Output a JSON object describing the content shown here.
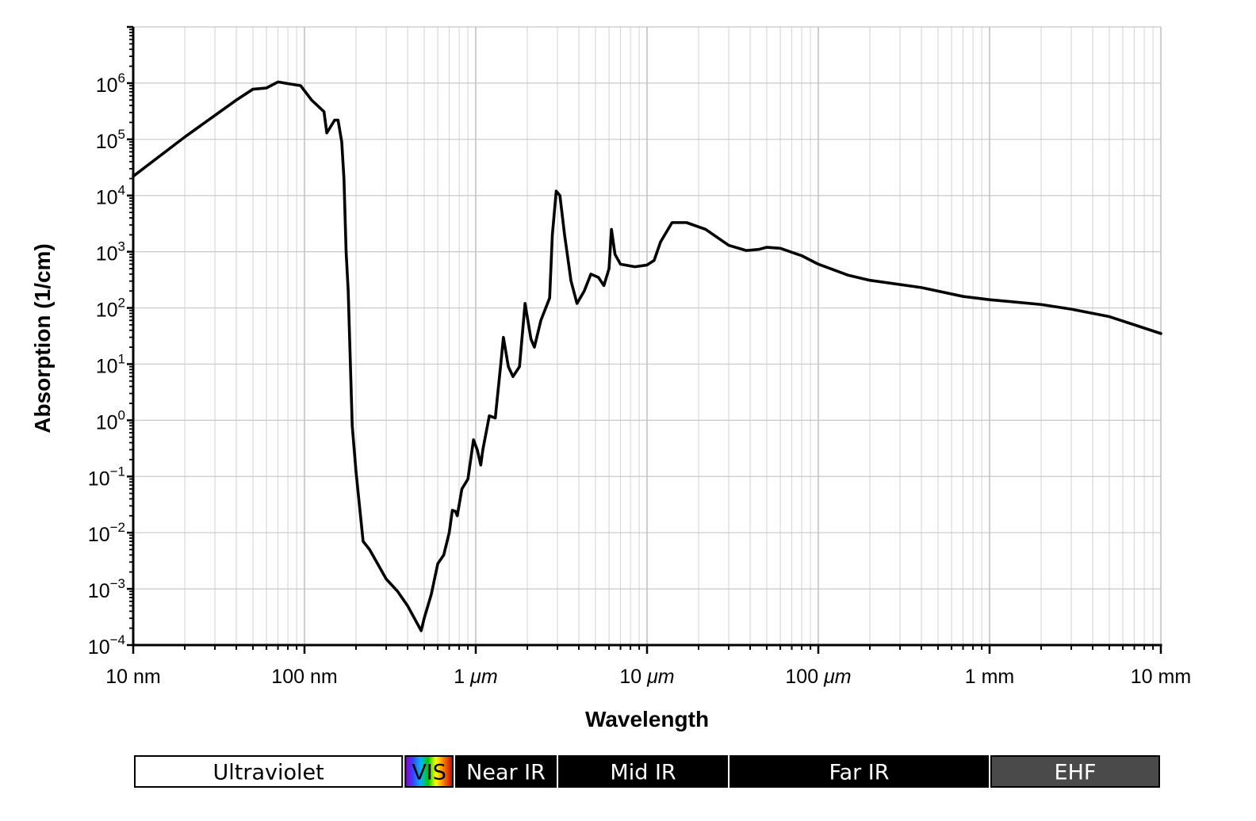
{
  "chart_data": {
    "type": "line",
    "title": "",
    "xlabel": "Wavelength",
    "ylabel": "Absorption (1/cm)",
    "x_scale": "log",
    "y_scale": "log",
    "xlim": [
      "10 nm",
      "10 mm"
    ],
    "ylim": [
      0.0001,
      10000000
    ],
    "grid": true,
    "x_tick_labels": [
      {
        "v": "10 nm",
        "text": "10 nm"
      },
      {
        "v": "100 nm",
        "text": "100 nm"
      },
      {
        "v": "1 µm",
        "text": "1 μm"
      },
      {
        "v": "10 µm",
        "text": "10 μm"
      },
      {
        "v": "100 µm",
        "text": "100 μm"
      },
      {
        "v": "1 mm",
        "text": "1 mm"
      },
      {
        "v": "10 mm",
        "text": "10 mm"
      }
    ],
    "y_tick_labels": [
      {
        "base": "10",
        "exp": "6"
      },
      {
        "base": "10",
        "exp": "5"
      },
      {
        "base": "10",
        "exp": "4"
      },
      {
        "base": "10",
        "exp": "3"
      },
      {
        "base": "10",
        "exp": "2"
      },
      {
        "base": "10",
        "exp": "1"
      },
      {
        "base": "10",
        "exp": "0"
      },
      {
        "base": "10",
        "exp": "−1"
      },
      {
        "base": "10",
        "exp": "−2"
      },
      {
        "base": "10",
        "exp": "−3"
      },
      {
        "base": "10",
        "exp": "−4"
      }
    ],
    "series": [
      {
        "color": "#000000",
        "points": [
          [
            "10 nm",
            22000
          ],
          [
            "20 nm",
            110000
          ],
          [
            "40 nm",
            500000
          ],
          [
            "50 nm",
            780000
          ],
          [
            "60 nm",
            820000
          ],
          [
            "70 nm",
            1050000
          ],
          [
            "80 nm",
            980000
          ],
          [
            "95 nm",
            900000
          ],
          [
            "110 nm",
            500000
          ],
          [
            "130 nm",
            310000
          ],
          [
            "135 nm",
            130000
          ],
          [
            "150 nm",
            220000
          ],
          [
            "157 nm",
            220000
          ],
          [
            "165 nm",
            90000
          ],
          [
            "170 nm",
            20000
          ],
          [
            "175 nm",
            1000
          ],
          [
            "180 nm",
            200
          ],
          [
            "190 nm",
            0.8
          ],
          [
            "200 nm",
            0.12
          ],
          [
            "220 nm",
            0.007
          ],
          [
            "240 nm",
            0.005
          ],
          [
            "300 nm",
            0.0015
          ],
          [
            "350 nm",
            0.0009
          ],
          [
            "400 nm",
            0.0005
          ],
          [
            "480 nm",
            0.00018
          ],
          [
            "500 nm",
            0.0003
          ],
          [
            "550 nm",
            0.0008
          ],
          [
            "600 nm",
            0.0028
          ],
          [
            "650 nm",
            0.004
          ],
          [
            "700 nm",
            0.01
          ],
          [
            "730 nm",
            0.025
          ],
          [
            "760 nm",
            0.024
          ],
          [
            "780 nm",
            0.02
          ],
          [
            "830 nm",
            0.06
          ],
          [
            "900 nm",
            0.09
          ],
          [
            "970 nm",
            0.45
          ],
          [
            "1020 nm",
            0.3
          ],
          [
            "1070 nm",
            0.16
          ],
          [
            "1100 nm",
            0.3
          ],
          [
            "1200 nm",
            1.2
          ],
          [
            "1300 nm",
            1.1
          ],
          [
            "1400 nm",
            10
          ],
          [
            "1450 nm",
            30
          ],
          [
            "1550 nm",
            9
          ],
          [
            "1650 nm",
            6
          ],
          [
            "1800 nm",
            9
          ],
          [
            "1940 nm",
            120
          ],
          [
            "2100 nm",
            28
          ],
          [
            "2200 nm",
            20
          ],
          [
            "2400 nm",
            60
          ],
          [
            "2700 nm",
            150
          ],
          [
            "2800 nm",
            2000
          ],
          [
            "2950 nm",
            12000
          ],
          [
            "3100 nm",
            10000
          ],
          [
            "3300 nm",
            2000
          ],
          [
            "3600 nm",
            300
          ],
          [
            "3900 nm",
            120
          ],
          [
            "4300 nm",
            200
          ],
          [
            "4700 nm",
            400
          ],
          [
            "5200 nm",
            350
          ],
          [
            "5600 nm",
            250
          ],
          [
            "6000 nm",
            500
          ],
          [
            "6200 nm",
            2500
          ],
          [
            "6500 nm",
            900
          ],
          [
            "7000 nm",
            600
          ],
          [
            "8500 nm",
            540
          ],
          [
            "10 µm",
            580
          ],
          [
            "11 µm",
            700
          ],
          [
            "12 µm",
            1500
          ],
          [
            "14 µm",
            3300
          ],
          [
            "17 µm",
            3300
          ],
          [
            "22 µm",
            2500
          ],
          [
            "30 µm",
            1300
          ],
          [
            "38 µm",
            1050
          ],
          [
            "45 µm",
            1100
          ],
          [
            "50 µm",
            1200
          ],
          [
            "60 µm",
            1150
          ],
          [
            "80 µm",
            850
          ],
          [
            "100 µm",
            600
          ],
          [
            "150 µm",
            380
          ],
          [
            "200 µm",
            310
          ],
          [
            "400 µm",
            230
          ],
          [
            "700 µm",
            160
          ],
          [
            "1 mm",
            140
          ],
          [
            "2 mm",
            115
          ],
          [
            "3 mm",
            95
          ],
          [
            "5 mm",
            70
          ],
          [
            "7 mm",
            50
          ],
          [
            "10 mm",
            35
          ]
        ]
      }
    ],
    "bands": [
      {
        "label": "Ultraviolet",
        "from": "10 nm",
        "to": "380 nm",
        "fill": "#ffffff",
        "text_color": "#000000"
      },
      {
        "label": "VIS",
        "from": "380 nm",
        "to": "750 nm",
        "fill": "spectrum",
        "text_color": "#000000"
      },
      {
        "label": "Near IR",
        "from": "750 nm",
        "to": "3 µm",
        "fill": "#000000",
        "text_color": "#ffffff"
      },
      {
        "label": "Mid IR",
        "from": "3 µm",
        "to": "30 µm",
        "fill": "#000000",
        "text_color": "#ffffff"
      },
      {
        "label": "Far IR",
        "from": "30 µm",
        "to": "1 mm",
        "fill": "#000000",
        "text_color": "#ffffff"
      },
      {
        "label": "EHF",
        "from": "1 mm",
        "to": "10 mm",
        "fill": "#4a4a4a",
        "text_color": "#ffffff"
      }
    ]
  }
}
